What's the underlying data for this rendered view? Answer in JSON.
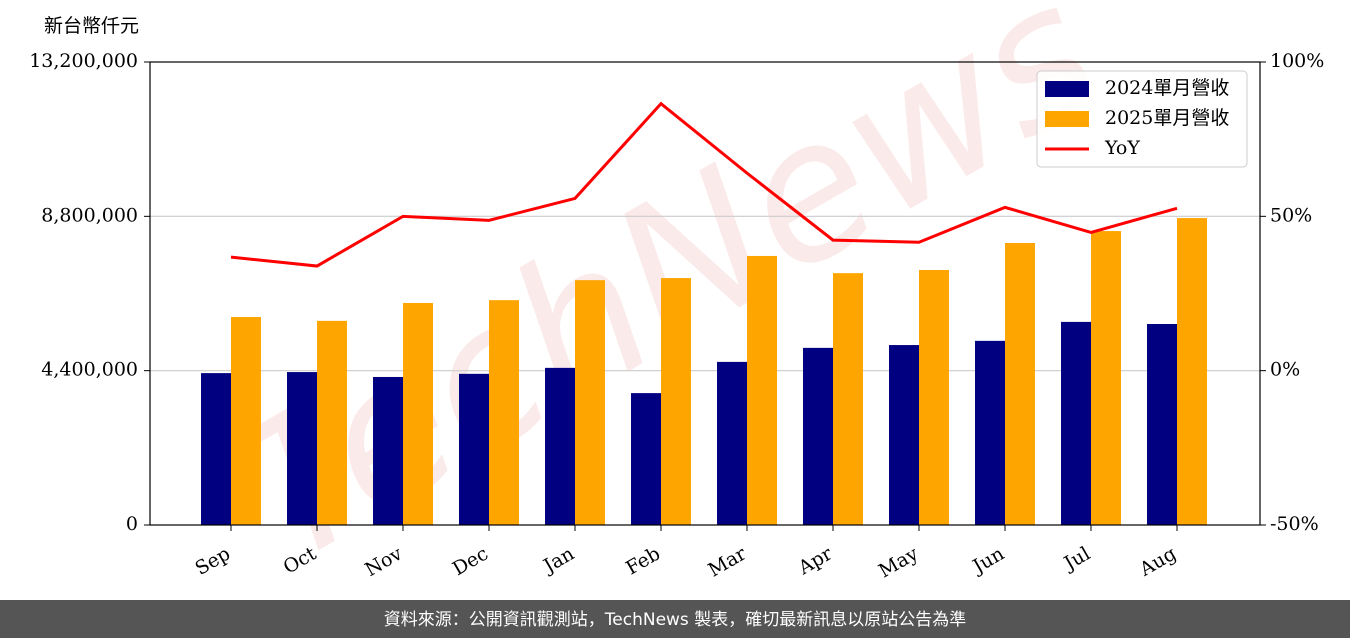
{
  "chart_data": {
    "type": "bar_line",
    "y_label": "新台幣仟元",
    "categories": [
      "Sep",
      "Oct",
      "Nov",
      "Dec",
      "Jan",
      "Feb",
      "Mar",
      "Apr",
      "May",
      "Jun",
      "Jul",
      "Aug"
    ],
    "series": [
      {
        "name": "2024單月營收",
        "color": "#000080",
        "values": [
          4330000,
          4360000,
          4220000,
          4310000,
          4480000,
          3760000,
          4650000,
          5050000,
          5130000,
          5250000,
          5790000,
          5730000
        ]
      },
      {
        "name": "2025單月營收",
        "color": "#ffa500",
        "values": [
          5930000,
          5820000,
          6330000,
          6410000,
          6980000,
          7040000,
          7670000,
          7180000,
          7270000,
          8040000,
          8380000,
          8750000
        ]
      },
      {
        "name": "YoY",
        "color": "#ff0000",
        "axis": "y2",
        "values": [
          36.8,
          33.9,
          50,
          48.7,
          55.8,
          86.5,
          64,
          42.3,
          41.6,
          52.9,
          44.8,
          52.6
        ]
      }
    ],
    "ylim": [
      0,
      13200000
    ],
    "yticks": [
      0,
      {
        "value": 4400000,
        "label": "4,400,000"
      },
      {
        "value": 8800000,
        "label": "8,800,000"
      },
      {
        "value": 13200000,
        "label": "13,200,000"
      }
    ],
    "y2lim": [
      -50,
      100
    ],
    "y2ticks": [
      {
        "value": -50,
        "label": "-50%"
      },
      {
        "value": 0,
        "label": "0%"
      },
      {
        "value": 50,
        "label": "50%"
      },
      {
        "value": 100,
        "label": "100%"
      }
    ],
    "grid": true,
    "legend": "upper right",
    "watermark": "TechNews",
    "footer": "資料來源：公開資訊觀測站，TechNews 製表，確切最新訊息以原站公告為準"
  }
}
